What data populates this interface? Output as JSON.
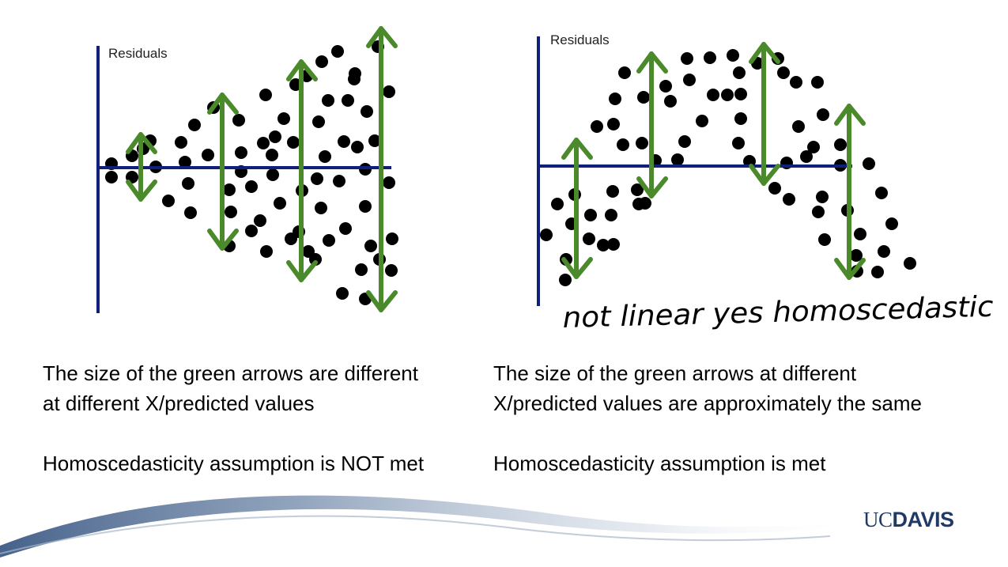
{
  "left_plot": {
    "ylabel": "Residuals"
  },
  "right_plot": {
    "ylabel": "Residuals",
    "handwritten_note": "not linear yes homoscedastic"
  },
  "captions": {
    "left_1": "The size of the green arrows are different\nat different X/predicted values",
    "left_2": "Homoscedasticity assumption is NOT met",
    "right_1": "The size of the green arrows at different\nX/predicted values are approximately the same",
    "right_2": "Homoscedasticity assumption is met"
  },
  "logo": {
    "part1": "UC",
    "part2": "DAVIS"
  },
  "colors": {
    "axis": "#0f1f7a",
    "arrow": "#4a8a2a",
    "dot": "#000000",
    "logo": "#1f3a68",
    "swoosh": "#5b7598"
  }
}
